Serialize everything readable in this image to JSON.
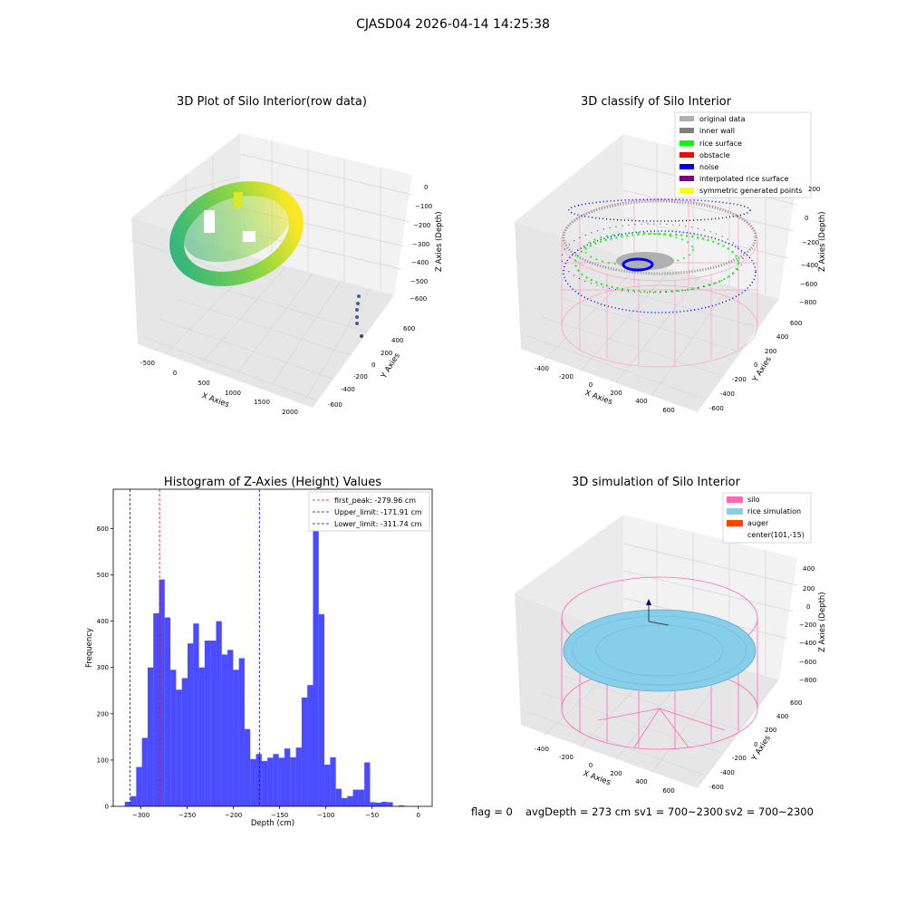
{
  "suptitle": "CJASD04 2026-04-14 14:25:38",
  "panel1": {
    "title": "3D Plot of Silo Interior(row data)",
    "xlabel": "X Axies",
    "ylabel": "Y Axies",
    "zlabel": "Z Axies (Depth)",
    "xticks": [
      "-500",
      "0",
      "500",
      "1000",
      "1500",
      "2000"
    ],
    "yticks": [
      "-600",
      "-400",
      "-200",
      "0",
      "200",
      "400",
      "600"
    ],
    "zticks": [
      "0",
      "−100",
      "−200",
      "−300",
      "−400",
      "−500",
      "−600"
    ]
  },
  "panel2": {
    "title": "3D classify of Silo Interior",
    "xlabel": "X Axies",
    "ylabel": "Y Axies",
    "zlabel": "Z Axies (Depth)",
    "xticks": [
      "-400",
      "-200",
      "0",
      "200",
      "400",
      "600"
    ],
    "yticks": [
      "-600",
      "-400",
      "-200",
      "0",
      "200",
      "400",
      "600"
    ],
    "zticks": [
      "200",
      "0",
      "−200",
      "−400",
      "−600",
      "−800"
    ],
    "legend": [
      {
        "label": "original data",
        "color": "#b0b0b0"
      },
      {
        "label": "inner wall",
        "color": "#808080"
      },
      {
        "label": "rice surface",
        "color": "#00ff00"
      },
      {
        "label": "obstacle",
        "color": "#ff0000"
      },
      {
        "label": "noise",
        "color": "#0000ff"
      },
      {
        "label": "interpolated rice surface",
        "color": "#800080"
      },
      {
        "label": "symmetric generated points",
        "color": "#ffff00"
      }
    ]
  },
  "panel4": {
    "title": "3D simulation of Silo Interior",
    "xlabel": "X Axies",
    "ylabel": "Y Axies",
    "zlabel": "Z Axies (Depth)",
    "xticks": [
      "-400",
      "-200",
      "0",
      "200",
      "400",
      "600"
    ],
    "yticks": [
      "-600",
      "-400",
      "-200",
      "0",
      "200",
      "400",
      "600"
    ],
    "zticks": [
      "400",
      "200",
      "0",
      "−200",
      "−400",
      "−600",
      "−800"
    ],
    "legend": [
      {
        "label": "silo",
        "color": "#ff69b4"
      },
      {
        "label": "rice simulation",
        "color": "#87ceeb"
      },
      {
        "label": "auger",
        "color": "#ff4500"
      },
      {
        "label": "center(101,-15)",
        "color": ""
      }
    ]
  },
  "status": {
    "flag": "flag = 0",
    "avg_depth": "avgDepth = 273 cm",
    "sv1": "sv1 = 700~2300",
    "sv2": "sv2 = 700~2300"
  },
  "chart_data": {
    "type": "bar",
    "title": "Histogram of Z-Axies (Height) Values",
    "xlabel": "Depth (cm)",
    "ylabel": "Frequency",
    "xlim": [
      -330,
      15
    ],
    "ylim": [
      0,
      685
    ],
    "xticks": [
      -300,
      -250,
      -200,
      -150,
      -100,
      -50,
      0
    ],
    "yticks": [
      0,
      100,
      200,
      300,
      400,
      500,
      600
    ],
    "bin_start": -317.5,
    "bin_width": 6.17,
    "values": [
      10,
      22,
      85,
      148,
      300,
      417,
      490,
      408,
      295,
      252,
      277,
      352,
      395,
      300,
      358,
      358,
      400,
      328,
      338,
      295,
      320,
      167,
      102,
      113,
      98,
      105,
      113,
      105,
      125,
      106,
      127,
      235,
      262,
      660,
      415,
      90,
      106,
      38,
      18,
      22,
      36,
      36,
      95,
      9,
      8,
      10,
      9,
      0,
      2,
      0
    ],
    "color": "#0000ff",
    "vlines": [
      {
        "label": "first_peak: -279.96 cm",
        "x": -279.96,
        "color": "#ff0000"
      },
      {
        "label": "Upper_limit: -171.91 cm",
        "x": -171.91,
        "color": "#0000ff"
      },
      {
        "label": "Lower_limit: -311.74 cm",
        "x": -311.74,
        "color": "#0000ff"
      }
    ]
  }
}
